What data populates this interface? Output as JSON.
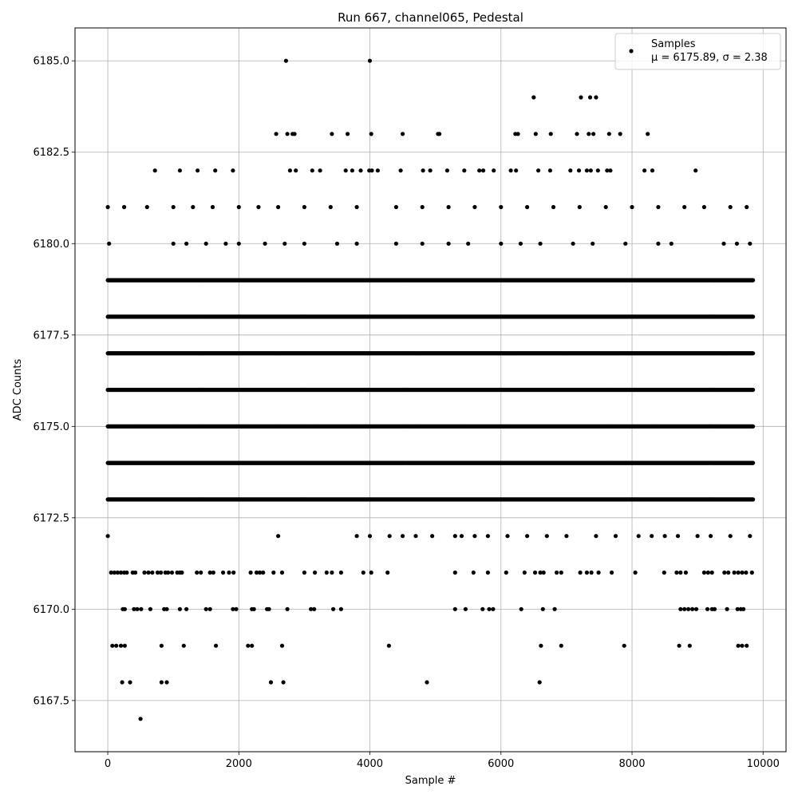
{
  "chart_data": {
    "type": "scatter",
    "title": "Run 667, channel065, Pedestal",
    "xlabel": "Sample #",
    "ylabel": "ADC Counts",
    "xlim": [
      -500,
      10350
    ],
    "ylim": [
      6166.1,
      6185.9
    ],
    "x_ticks": [
      0,
      2000,
      4000,
      6000,
      8000,
      10000
    ],
    "x_tick_labels": [
      "0",
      "2000",
      "4000",
      "6000",
      "8000",
      "10000"
    ],
    "y_ticks": [
      6167.5,
      6170.0,
      6172.5,
      6175.0,
      6177.5,
      6180.0,
      6182.5,
      6185.0
    ],
    "y_tick_labels": [
      "6167.5",
      "6170.0",
      "6172.5",
      "6175.0",
      "6177.5",
      "6180.0",
      "6182.5",
      "6185.0"
    ],
    "grid": true,
    "legend_position": "top-right",
    "point_color": "#000000",
    "series": [
      {
        "name": "Samples",
        "legend_text": "Samples",
        "legend_stats": "μ = 6175.89, σ = 2.38",
        "n_samples": 9850,
        "value_counts": [
          {
            "y": 6167,
            "x": [
              500
            ]
          },
          {
            "y": 6168,
            "x": [
              220,
              340,
              820,
              900,
              2490,
              2680,
              4870,
              6590
            ]
          },
          {
            "y": 6169,
            "x": [
              70,
              130,
              200,
              260,
              820,
              1160,
              1650,
              2140,
              2200,
              2660,
              4290,
              6610,
              6920,
              7880,
              8720,
              8880,
              9620,
              9680,
              9750
            ]
          },
          {
            "y": 6170,
            "x": [
              230,
              260,
              400,
              450,
              510,
              650,
              860,
              900,
              1100,
              1200,
              1500,
              1560,
              1910,
              1960,
              2200,
              2230,
              2430,
              2460,
              2740,
              3100,
              3150,
              3440,
              3560,
              5300,
              5460,
              5720,
              5820,
              5880,
              6310,
              6640,
              6820,
              8740,
              8800,
              8860,
              8920,
              8980,
              9150,
              9220,
              9260,
              9450,
              9610,
              9660,
              9700
            ]
          },
          {
            "y": 6171,
            "x": [
              50,
              100,
              150,
              200,
              250,
              290,
              380,
              420,
              560,
              620,
              680,
              760,
              810,
              880,
              920,
              980,
              1060,
              1100,
              1130,
              1360,
              1420,
              1560,
              1610,
              1760,
              1850,
              1920,
              2180,
              2270,
              2320,
              2370,
              2530,
              2660,
              3000,
              3160,
              3340,
              3420,
              3560,
              3900,
              4020,
              4270,
              5300,
              5580,
              5800,
              6080,
              6360,
              6520,
              6600,
              6650,
              6850,
              6920,
              7210,
              7310,
              7380,
              7490,
              7690,
              8050,
              8490,
              8680,
              8740,
              8820,
              9100,
              9160,
              9220,
              9410,
              9470,
              9560,
              9620,
              9680,
              9740,
              9830
            ]
          },
          {
            "y": 6172,
            "x": [
              0,
              2600,
              3800,
              4000,
              4300,
              4500,
              4700,
              4950,
              5300,
              5400,
              5600,
              5800,
              6100,
              6400,
              6700,
              7000,
              7450,
              7750,
              8100,
              8300,
              8500,
              8700,
              9000,
              9200,
              9500,
              9800
            ]
          },
          {
            "y": 6173,
            "x": [
              0,
              9850
            ]
          },
          {
            "y": 6174,
            "x": [
              0,
              9850
            ]
          },
          {
            "y": 6175,
            "x": [
              0,
              9850
            ]
          },
          {
            "y": 6176,
            "x": [
              0,
              9850
            ]
          },
          {
            "y": 6177,
            "x": [
              0,
              9850
            ]
          },
          {
            "y": 6178,
            "x": [
              0,
              9850
            ]
          },
          {
            "y": 6179,
            "x": [
              0,
              9850
            ]
          },
          {
            "y": 6180,
            "x": [
              20,
              1000,
              1200,
              1500,
              1800,
              2000,
              2400,
              2700,
              3000,
              3500,
              3800,
              4400,
              4800,
              5200,
              5500,
              6000,
              6300,
              6600,
              7100,
              7400,
              7900,
              8400,
              8600,
              9400,
              9600,
              9800
            ]
          },
          {
            "y": 6181,
            "x": [
              0,
              250,
              600,
              1000,
              1300,
              1600,
              2000,
              2300,
              2600,
              3000,
              3400,
              3800,
              4400,
              4800,
              5200,
              5600,
              6000,
              6400,
              6800,
              7200,
              7600,
              8000,
              8400,
              8800,
              9100,
              9500,
              9750
            ]
          },
          {
            "y": 6182,
            "x": [
              720,
              1100,
              1370,
              1640,
              1910,
              2780,
              2870,
              3120,
              3240,
              3630,
              3730,
              3860,
              3990,
              4030,
              4120,
              4470,
              4810,
              4920,
              5180,
              5440,
              5670,
              5730,
              5890,
              6150,
              6230,
              6570,
              6750,
              7060,
              7190,
              7310,
              7370,
              7480,
              7620,
              7670,
              8190,
              8310,
              8970
            ]
          },
          {
            "y": 6183,
            "x": [
              2570,
              2740,
              2820,
              2850,
              3420,
              3660,
              4020,
              4500,
              5040,
              5060,
              6220,
              6260,
              6530,
              6760,
              7160,
              7340,
              7410,
              7650,
              7820,
              8240
            ]
          },
          {
            "y": 6184,
            "x": [
              6500,
              7220,
              7360,
              7450
            ]
          },
          {
            "y": 6185,
            "x": [
              2720,
              4000
            ]
          }
        ]
      }
    ]
  }
}
